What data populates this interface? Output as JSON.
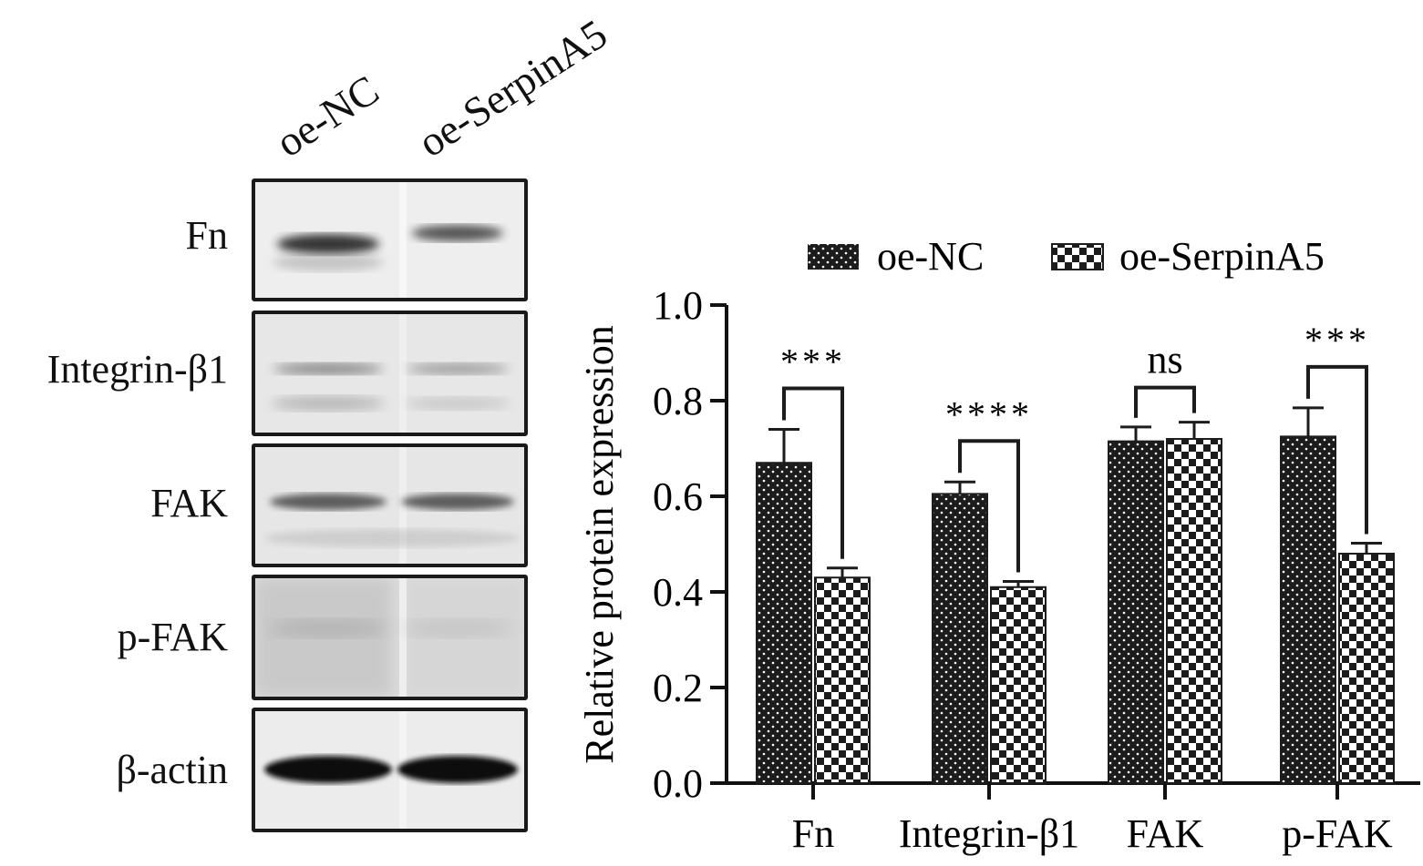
{
  "western_blot": {
    "lanes": [
      "oe-NC",
      "oe-SerpinA5"
    ],
    "rows": [
      {
        "label": "Fn"
      },
      {
        "label": "Integrin-β1"
      },
      {
        "label": "FAK"
      },
      {
        "label": "p-FAK"
      },
      {
        "label": "β-actin"
      }
    ]
  },
  "chart_data": {
    "type": "bar",
    "categories": [
      "Fn",
      "Integrin-β1",
      "FAK",
      "p-FAK"
    ],
    "series": [
      {
        "name": "oe-NC",
        "values": [
          0.67,
          0.605,
          0.715,
          0.725
        ],
        "errors": [
          0.07,
          0.025,
          0.03,
          0.06
        ],
        "fill": "dotted-dark"
      },
      {
        "name": "oe-SerpinA5",
        "values": [
          0.43,
          0.41,
          0.72,
          0.48
        ],
        "errors": [
          0.02,
          0.012,
          0.035,
          0.022
        ],
        "fill": "checkered"
      }
    ],
    "significance": [
      "***",
      "****",
      "ns",
      "***"
    ],
    "ylabel": "Relative protein expression",
    "xlabel": "",
    "ylim": [
      0,
      1.0
    ],
    "yticks": [
      "0.0",
      "0.2",
      "0.4",
      "0.6",
      "0.8",
      "1.0"
    ],
    "legend_position": "top",
    "grid": false,
    "colors": {
      "dark": "#1c1c1c",
      "light": "#ffffff",
      "axis": "#111111"
    }
  }
}
